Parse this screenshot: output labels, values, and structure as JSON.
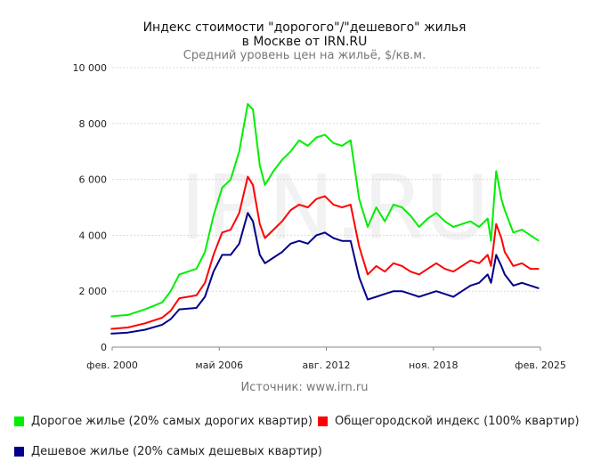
{
  "title_line1": "Индекс стоимости \"дорогого\"/\"дешевого\" жилья",
  "title_line2": "в Москве от IRN.RU",
  "subtitle": "Средний уровень цен на жильё, $/кв.м.",
  "watermark": "IRN.RU",
  "source": "Источник: www.irn.ru",
  "chart_data": {
    "type": "line",
    "title": "Индекс стоимости \"дорогого\"/\"дешевого\" жилья в Москве от IRN.RU",
    "subtitle": "Средний уровень цен на жильё, $/кв.м.",
    "xlabel": "",
    "ylabel": "",
    "ylim": [
      0,
      10000
    ],
    "y_ticks": [
      0,
      2000,
      4000,
      6000,
      8000,
      10000
    ],
    "y_tick_labels": [
      "0",
      "2 000",
      "4 000",
      "6 000",
      "8 000",
      "10 000"
    ],
    "x_range": [
      2000.083,
      2025.083
    ],
    "x_ticks": [
      2000.083,
      2006.333,
      2012.583,
      2018.833,
      2025.083
    ],
    "x_tick_labels": [
      "фев. 2000",
      "май 2006",
      "авг. 2012",
      "ноя. 2018",
      "фев. 2025"
    ],
    "grid": "horizontal",
    "legend_position": "bottom",
    "series": [
      {
        "name": "Дорогое жилье (20% самых дорогих квартир)",
        "color": "#00ee00",
        "x": [
          2000.0,
          2001.0,
          2002.0,
          2003.0,
          2003.5,
          2004.0,
          2005.0,
          2005.5,
          2006.0,
          2006.5,
          2007.0,
          2007.5,
          2008.0,
          2008.3,
          2008.7,
          2009.0,
          2009.5,
          2010.0,
          2010.5,
          2011.0,
          2011.5,
          2012.0,
          2012.5,
          2013.0,
          2013.5,
          2014.0,
          2014.5,
          2015.0,
          2015.5,
          2016.0,
          2016.5,
          2017.0,
          2017.5,
          2018.0,
          2018.5,
          2019.0,
          2019.5,
          2020.0,
          2020.5,
          2021.0,
          2021.5,
          2022.0,
          2022.2,
          2022.5,
          2022.8,
          2023.0,
          2023.5,
          2024.0,
          2024.5,
          2025.0
        ],
        "values": [
          1100,
          1150,
          1350,
          1600,
          2000,
          2600,
          2800,
          3400,
          4700,
          5700,
          6000,
          7000,
          8700,
          8500,
          6500,
          5800,
          6300,
          6700,
          7000,
          7400,
          7200,
          7500,
          7600,
          7300,
          7200,
          7400,
          5300,
          4300,
          5000,
          4500,
          5100,
          5000,
          4700,
          4300,
          4600,
          4800,
          4500,
          4300,
          4400,
          4500,
          4300,
          4600,
          3800,
          6300,
          5300,
          4900,
          4100,
          4200,
          4000,
          3800
        ]
      },
      {
        "name": "Общегородской индекс (100% квартир)",
        "color": "#ff0000",
        "x": [
          2000.0,
          2001.0,
          2002.0,
          2003.0,
          2003.5,
          2004.0,
          2005.0,
          2005.5,
          2006.0,
          2006.5,
          2007.0,
          2007.5,
          2008.0,
          2008.3,
          2008.7,
          2009.0,
          2009.5,
          2010.0,
          2010.5,
          2011.0,
          2011.5,
          2012.0,
          2012.5,
          2013.0,
          2013.5,
          2014.0,
          2014.5,
          2015.0,
          2015.5,
          2016.0,
          2016.5,
          2017.0,
          2017.5,
          2018.0,
          2018.5,
          2019.0,
          2019.5,
          2020.0,
          2020.5,
          2021.0,
          2021.5,
          2022.0,
          2022.2,
          2022.5,
          2022.8,
          2023.0,
          2023.5,
          2024.0,
          2024.5,
          2025.0
        ],
        "values": [
          650,
          700,
          850,
          1050,
          1300,
          1750,
          1850,
          2300,
          3300,
          4100,
          4200,
          4800,
          6100,
          5800,
          4400,
          3900,
          4200,
          4500,
          4900,
          5100,
          5000,
          5300,
          5400,
          5100,
          5000,
          5100,
          3600,
          2600,
          2900,
          2700,
          3000,
          2900,
          2700,
          2600,
          2800,
          3000,
          2800,
          2700,
          2900,
          3100,
          3000,
          3300,
          2900,
          4400,
          3900,
          3400,
          2900,
          3000,
          2800,
          2800
        ]
      },
      {
        "name": "Дешевое жилье (20% самых дешевых квартир)",
        "color": "#000088",
        "x": [
          2000.0,
          2001.0,
          2002.0,
          2003.0,
          2003.5,
          2004.0,
          2005.0,
          2005.5,
          2006.0,
          2006.5,
          2007.0,
          2007.5,
          2008.0,
          2008.3,
          2008.7,
          2009.0,
          2009.5,
          2010.0,
          2010.5,
          2011.0,
          2011.5,
          2012.0,
          2012.5,
          2013.0,
          2013.5,
          2014.0,
          2014.5,
          2015.0,
          2015.5,
          2016.0,
          2016.5,
          2017.0,
          2017.5,
          2018.0,
          2018.5,
          2019.0,
          2019.5,
          2020.0,
          2020.5,
          2021.0,
          2021.5,
          2022.0,
          2022.2,
          2022.5,
          2022.8,
          2023.0,
          2023.5,
          2024.0,
          2024.5,
          2025.0
        ],
        "values": [
          480,
          520,
          620,
          800,
          1000,
          1350,
          1400,
          1800,
          2700,
          3300,
          3300,
          3700,
          4800,
          4500,
          3300,
          3000,
          3200,
          3400,
          3700,
          3800,
          3700,
          4000,
          4100,
          3900,
          3800,
          3800,
          2500,
          1700,
          1800,
          1900,
          2000,
          2000,
          1900,
          1800,
          1900,
          2000,
          1900,
          1800,
          2000,
          2200,
          2300,
          2600,
          2300,
          3300,
          2900,
          2600,
          2200,
          2300,
          2200,
          2100
        ]
      }
    ]
  }
}
